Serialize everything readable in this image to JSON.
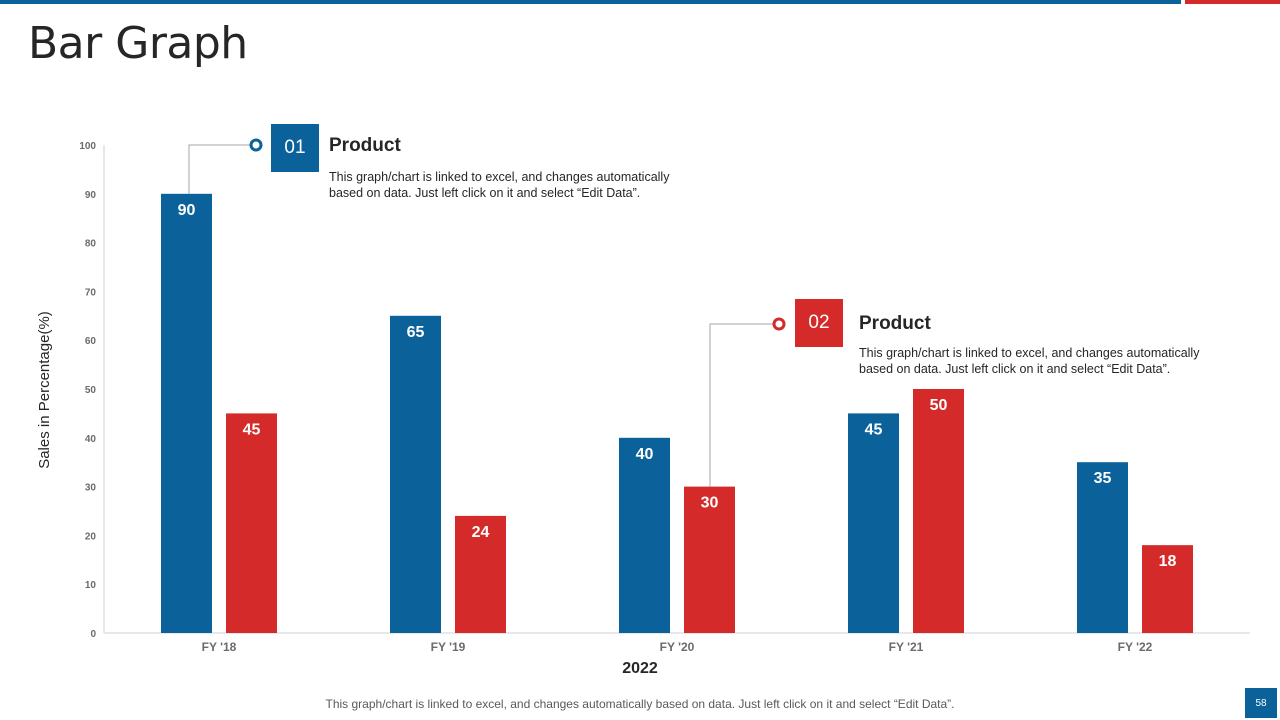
{
  "slide": {
    "title": "Bar Graph",
    "footer": "This graph/chart is linked to excel, and changes automatically based on data. Just left click on it and select “Edit Data”.",
    "page_number": "58"
  },
  "colors": {
    "blue": "#0b6199",
    "red": "#d42a2a",
    "axis": "#d0d0d0",
    "connector": "#a6a6a6"
  },
  "callouts": [
    {
      "number": "01",
      "title": "Product",
      "text_line1": "This graph/chart is linked to excel, and changes automatically",
      "text_line2": "based on data. Just left click on it and select “Edit Data”."
    },
    {
      "number": "02",
      "title": "Product",
      "text_line1": "This graph/chart is linked to excel, and changes automatically",
      "text_line2": "based on data. Just left click on it and select “Edit Data”."
    }
  ],
  "chart_data": {
    "type": "bar",
    "title": "",
    "xlabel": "2022",
    "ylabel": "Sales in Percentage(%)",
    "categories": [
      "FY '18",
      "FY '19",
      "FY '20",
      "FY '21",
      "FY '22"
    ],
    "ylim": [
      0,
      100
    ],
    "yticks": [
      0,
      10,
      20,
      30,
      40,
      50,
      60,
      70,
      80,
      90,
      100
    ],
    "grid": false,
    "series": [
      {
        "name": "Product 01",
        "color": "#0b6199",
        "values": [
          90,
          65,
          40,
          45,
          35
        ]
      },
      {
        "name": "Product 02",
        "color": "#d42a2a",
        "values": [
          45,
          24,
          30,
          50,
          18
        ]
      }
    ]
  }
}
